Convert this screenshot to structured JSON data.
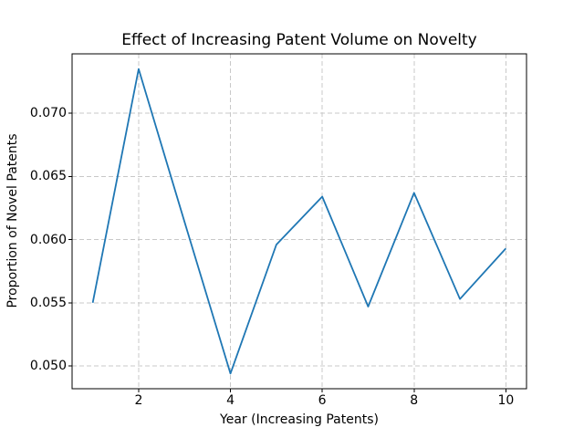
{
  "chart_data": {
    "type": "line",
    "title": "Effect of Increasing Patent Volume on Novelty",
    "xlabel": "Year (Increasing Patents)",
    "ylabel": "Proportion of Novel Patents",
    "x": [
      1,
      2,
      3,
      4,
      5,
      6,
      7,
      8,
      9,
      10
    ],
    "y": [
      0.055,
      0.0735,
      0.0614,
      0.0494,
      0.0596,
      0.0634,
      0.0547,
      0.0637,
      0.0553,
      0.0593
    ],
    "x_ticks": [
      2,
      4,
      6,
      8,
      10
    ],
    "x_tick_labels": [
      "2",
      "4",
      "6",
      "8",
      "10"
    ],
    "y_ticks": [
      0.05,
      0.055,
      0.06,
      0.065,
      0.07
    ],
    "y_tick_labels": [
      "0.050",
      "0.055",
      "0.060",
      "0.065",
      "0.070"
    ],
    "xlim": [
      0.55,
      10.45
    ],
    "ylim": [
      0.0482,
      0.0747
    ],
    "grid": true,
    "grid_line_style": "dashed",
    "grid_color": "#c8c8c8",
    "line_color": "#1f77b4",
    "spine_color": "#000000",
    "background_color": "#ffffff",
    "legend": null
  }
}
